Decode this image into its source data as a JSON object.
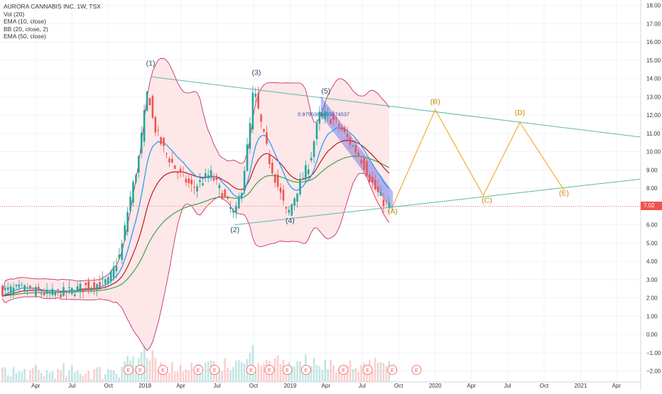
{
  "legend": {
    "symbol": "AURORA CANNABIS INC, 1W, TSX",
    "vol": "Vol (20)",
    "ema10": "EMA (10, close)",
    "bb": "BB (20, close, 2)",
    "ema50": "EMA (50, close)"
  },
  "colors": {
    "up": "#26a69a",
    "down": "#ef5350",
    "bb_fill": "#fde4e6",
    "bb_line": "#c2185b",
    "ema10": "#2196f3",
    "ema_red": "#b71c1c",
    "ema50": "#43a047",
    "channel": "#5c6bf0",
    "triangle": "#5fb8a4",
    "projection": "#f5a623",
    "wave_label": "#2d4a6b",
    "projection_label": "#c98a00",
    "price_line": "#ef5350",
    "earnings": "#ef5350"
  },
  "chart_data": {
    "type": "candlestick",
    "title": "AURORA CANNABIS INC, 1W, TSX",
    "ylim": [
      -2.6,
      18.3
    ],
    "y_ticks": [
      "18.00",
      "17.00",
      "16.00",
      "15.00",
      "14.00",
      "13.00",
      "12.00",
      "11.00",
      "10.00",
      "9.00",
      "8.00",
      "7.00",
      "6.00",
      "5.00",
      "4.00",
      "3.00",
      "2.00",
      "1.00",
      "0.00",
      "−1.00",
      "−2.00"
    ],
    "x_ticks": [
      "Apr",
      "Jul",
      "Oct",
      "2018",
      "Apr",
      "Jul",
      "Oct",
      "2019",
      "Apr",
      "Jul",
      "Oct",
      "2020",
      "Apr",
      "Jul",
      "Oct",
      "2021",
      "Apr"
    ],
    "x_tick_dates": [
      "2017-04-01",
      "2017-07-01",
      "2017-10-01",
      "2018-01-01",
      "2018-04-01",
      "2018-07-01",
      "2018-10-01",
      "2019-01-01",
      "2019-04-01",
      "2019-07-01",
      "2019-10-01",
      "2020-01-01",
      "2020-04-01",
      "2020-07-01",
      "2020-10-01",
      "2021-01-01",
      "2021-04-01"
    ],
    "last_price": "7.02",
    "price_path": [
      [
        "2017-01-07",
        2.4
      ],
      [
        "2017-03-01",
        2.5
      ],
      [
        "2017-05-01",
        2.2
      ],
      [
        "2017-06-15",
        2.3
      ],
      [
        "2017-08-01",
        2.6
      ],
      [
        "2017-10-01",
        2.9
      ],
      [
        "2017-11-01",
        4.5
      ],
      [
        "2017-11-20",
        7.0
      ],
      [
        "2017-12-15",
        9.5
      ],
      [
        "2018-01-08",
        13.5
      ],
      [
        "2018-01-22",
        11.5
      ],
      [
        "2018-02-15",
        10.2
      ],
      [
        "2018-03-20",
        9.0
      ],
      [
        "2018-05-01",
        8.0
      ],
      [
        "2018-06-15",
        8.8
      ],
      [
        "2018-08-01",
        7.0
      ],
      [
        "2018-08-15",
        6.5
      ],
      [
        "2018-09-01",
        8.0
      ],
      [
        "2018-09-20",
        11.0
      ],
      [
        "2018-10-01",
        13.5
      ],
      [
        "2018-10-20",
        11.5
      ],
      [
        "2018-11-10",
        9.5
      ],
      [
        "2018-12-10",
        7.5
      ],
      [
        "2018-12-25",
        6.5
      ],
      [
        "2019-01-20",
        8.0
      ],
      [
        "2019-02-20",
        9.5
      ],
      [
        "2019-03-15",
        12.0
      ],
      [
        "2019-04-01",
        12.0
      ],
      [
        "2019-05-01",
        11.5
      ],
      [
        "2019-06-01",
        10.5
      ],
      [
        "2019-07-01",
        9.5
      ],
      [
        "2019-08-01",
        8.0
      ],
      [
        "2019-08-26",
        7.2
      ],
      [
        "2019-09-09",
        7.02
      ]
    ],
    "series": [
      {
        "name": "EMA (10, close)"
      },
      {
        "name": "BB (20, close, 2)"
      },
      {
        "name": "EMA (50, close)"
      },
      {
        "name": "Vol (20)"
      }
    ],
    "wave_labels": [
      {
        "label": "(1)",
        "date": "2018-01-15",
        "y": 14.7
      },
      {
        "label": "(2)",
        "date": "2018-08-15",
        "y": 5.6
      },
      {
        "label": "(3)",
        "date": "2018-10-08",
        "y": 14.2
      },
      {
        "label": "(4)",
        "date": "2019-01-01",
        "y": 6.1
      },
      {
        "label": "(5)",
        "date": "2019-04-01",
        "y": 13.2
      },
      {
        "label": "(A)",
        "date": "2019-09-16",
        "y": 6.6
      },
      {
        "label": "(B)",
        "date": "2020-01-01",
        "y": 12.6
      },
      {
        "label": "(C)",
        "date": "2020-05-10",
        "y": 7.2
      },
      {
        "label": "(D)",
        "date": "2020-08-01",
        "y": 12.0
      },
      {
        "label": "(E)",
        "date": "2020-11-20",
        "y": 7.6
      }
    ],
    "projection_path": [
      [
        "2019-09-16",
        7.02
      ],
      [
        "2020-01-01",
        12.3
      ],
      [
        "2020-05-01",
        7.6
      ],
      [
        "2020-08-01",
        11.6
      ],
      [
        "2020-11-20",
        7.9
      ]
    ],
    "triangle_upper": [
      [
        "2018-01-15",
        14.1
      ],
      [
        "2021-06-01",
        10.8
      ]
    ],
    "triangle_lower": [
      [
        "2018-08-15",
        6.0
      ],
      [
        "2021-06-01",
        8.5
      ]
    ],
    "channel_value": "0.9755387453874537",
    "earnings_label": "E",
    "earnings_dates": [
      "2017-11-20",
      "2017-12-20",
      "2018-02-15",
      "2018-05-15",
      "2018-06-25",
      "2018-09-25",
      "2018-11-10",
      "2018-12-25",
      "2019-02-10",
      "2019-05-15",
      "2019-07-15",
      "2019-09-15",
      "2019-11-15"
    ]
  }
}
